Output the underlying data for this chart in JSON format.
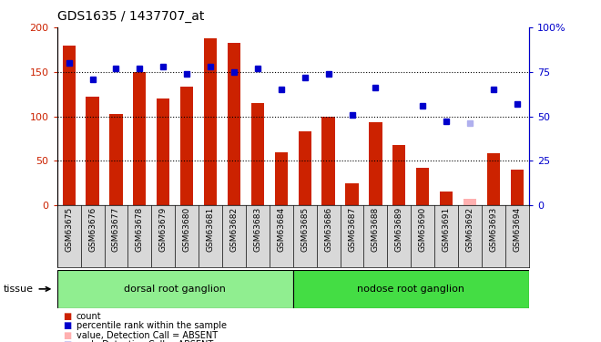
{
  "title": "GDS1635 / 1437707_at",
  "samples": [
    "GSM63675",
    "GSM63676",
    "GSM63677",
    "GSM63678",
    "GSM63679",
    "GSM63680",
    "GSM63681",
    "GSM63682",
    "GSM63683",
    "GSM63684",
    "GSM63685",
    "GSM63686",
    "GSM63687",
    "GSM63688",
    "GSM63689",
    "GSM63690",
    "GSM63691",
    "GSM63692",
    "GSM63693",
    "GSM63694"
  ],
  "bar_values": [
    180,
    122,
    103,
    150,
    120,
    133,
    188,
    183,
    115,
    60,
    83,
    100,
    25,
    93,
    68,
    42,
    15,
    null,
    58,
    40
  ],
  "dot_values": [
    80,
    71,
    77,
    77,
    78,
    74,
    78,
    75,
    77,
    65,
    72,
    74,
    51,
    66,
    null,
    56,
    47,
    null,
    65,
    57
  ],
  "absent_bar": [
    null,
    null,
    null,
    null,
    null,
    null,
    null,
    null,
    null,
    null,
    null,
    null,
    null,
    null,
    null,
    null,
    null,
    7,
    null,
    null
  ],
  "absent_dot": [
    null,
    null,
    null,
    null,
    null,
    null,
    null,
    null,
    null,
    null,
    null,
    null,
    null,
    null,
    null,
    null,
    null,
    46,
    null,
    null
  ],
  "groups": [
    {
      "label": "dorsal root ganglion",
      "start": 0,
      "end": 9
    },
    {
      "label": "nodose root ganglion",
      "start": 10,
      "end": 19
    }
  ],
  "ylim_left": [
    0,
    200
  ],
  "ylim_right": [
    0,
    100
  ],
  "yticks_left": [
    0,
    50,
    100,
    150,
    200
  ],
  "yticks_right": [
    0,
    25,
    50,
    75,
    100
  ],
  "bar_color": "#cc2200",
  "dot_color": "#0000cc",
  "absent_bar_color": "#ffb0b0",
  "absent_dot_color": "#b0b0ee",
  "group_color_dorsal": "#90ee90",
  "group_color_nodose": "#44dd44",
  "bg_color": "#d8d8d8",
  "tissue_label": "tissue"
}
